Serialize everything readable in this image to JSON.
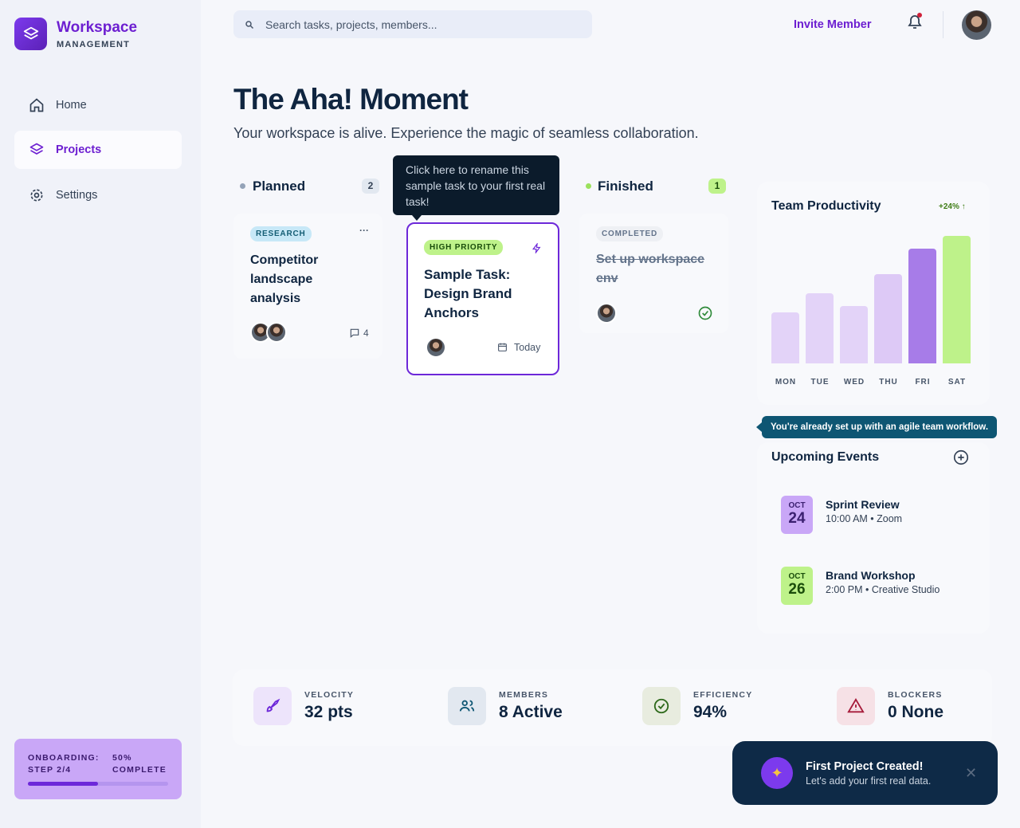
{
  "sidebar": {
    "brand": "Workspace",
    "brand_sub": "MANAGEMENT",
    "nav": [
      "Home",
      "Projects",
      "Settings"
    ],
    "active_nav": 1
  },
  "onboarding": {
    "title": "ONBOARDING:",
    "step": "STEP 2/4",
    "percent": "50%",
    "status": "COMPLETE",
    "progress": 50
  },
  "header": {
    "search_placeholder": "Search tasks, projects, members...",
    "invite": "Invite Member"
  },
  "hero": {
    "title": "The Aha! Moment",
    "subtitle": "Your workspace is alive. Experience the magic of seamless collaboration."
  },
  "board": {
    "columns": [
      {
        "name": "Planned",
        "count": 2,
        "card": {
          "tag": "RESEARCH",
          "title": "Competitor landscape analysis",
          "comments": 4
        }
      },
      {
        "name": "Finished",
        "count": 1,
        "card": {
          "tag": "COMPLETED",
          "title": "Set up workspace env"
        }
      }
    ],
    "featured": {
      "tooltip": "Click here to rename this sample task to your first real task!",
      "tag": "HIGH PRIORITY",
      "title": "Sample Task: Design Brand Anchors",
      "due": "Today"
    }
  },
  "productivity": {
    "title": "Team Productivity",
    "change": "+24%",
    "days": [
      "MON",
      "TUE",
      "WED",
      "THU",
      "FRI",
      "SAT"
    ],
    "values": [
      40,
      55,
      45,
      70,
      90,
      100
    ],
    "colors": [
      "#e3d3f8",
      "#e3d3f8",
      "#e3d3f8",
      "#ddc9f6",
      "#a77ce8",
      "#bef28a"
    ]
  },
  "agile_tip": "You're already set up with an agile team workflow.",
  "events": {
    "title": "Upcoming Events",
    "items": [
      {
        "month": "OCT",
        "day": 24,
        "name": "Sprint Review",
        "detail": "10:00 AM • Zoom"
      },
      {
        "month": "OCT",
        "day": 26,
        "name": "Brand Workshop",
        "detail": "2:00 PM • Creative Studio"
      }
    ]
  },
  "stats": [
    {
      "label": "VELOCITY",
      "value": "32 pts"
    },
    {
      "label": "MEMBERS",
      "value": "8 Active"
    },
    {
      "label": "EFFICIENCY",
      "value": "94%"
    },
    {
      "label": "BLOCKERS",
      "value": "0 None"
    }
  ],
  "toast": {
    "title": "First Project Created!",
    "message": "Let's add your first real data."
  }
}
